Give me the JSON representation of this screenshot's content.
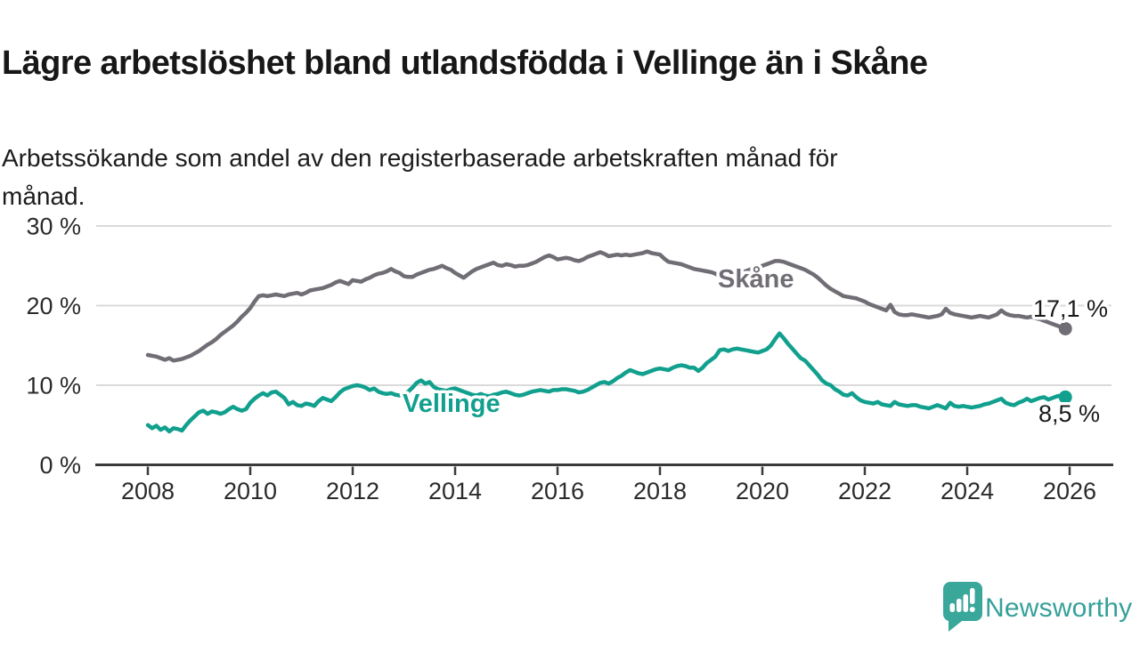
{
  "header": {
    "title": "Lägre arbetslöshet bland utlandsfödda i Vellinge än i Skåne",
    "subtitle_line1": "Arbetssökande som andel av den registerbaserade arbetskraften månad för",
    "subtitle_line2": "månad."
  },
  "chart_data": {
    "type": "line",
    "title": "Lägre arbetslöshet bland utlandsfödda i Vellinge än i Skåne",
    "subtitle": "Arbetssökande som andel av den registerbaserade arbetskraften månad för månad.",
    "x_start_year": 2008,
    "points_per_year": 12,
    "x_tick_years": [
      2008,
      2010,
      2012,
      2014,
      2016,
      2018,
      2020,
      2022,
      2024,
      2026
    ],
    "y_ticks": [
      {
        "value": 0,
        "label": "0 %"
      },
      {
        "value": 10,
        "label": "10 %"
      },
      {
        "value": 20,
        "label": "20 %"
      },
      {
        "value": 30,
        "label": "30 %"
      }
    ],
    "ylim": [
      0,
      30
    ],
    "grid": "horizontal",
    "legend_position": "inline-labels",
    "series": [
      {
        "name": "Skåne",
        "color": "#716d75",
        "end_label": "17,1 %",
        "values": [
          13.8,
          13.7,
          13.6,
          13.4,
          13.2,
          13.4,
          13.1,
          13.2,
          13.3,
          13.5,
          13.7,
          14.0,
          14.3,
          14.7,
          15.1,
          15.4,
          15.8,
          16.3,
          16.7,
          17.1,
          17.5,
          18.0,
          18.6,
          19.1,
          19.7,
          20.5,
          21.2,
          21.3,
          21.2,
          21.3,
          21.4,
          21.3,
          21.2,
          21.4,
          21.5,
          21.6,
          21.4,
          21.6,
          21.9,
          22.0,
          22.1,
          22.2,
          22.4,
          22.6,
          22.9,
          23.1,
          22.9,
          22.7,
          23.2,
          23.1,
          23.0,
          23.3,
          23.5,
          23.8,
          24.0,
          24.1,
          24.3,
          24.6,
          24.3,
          24.1,
          23.7,
          23.6,
          23.6,
          23.9,
          24.1,
          24.3,
          24.5,
          24.6,
          24.8,
          25.0,
          24.7,
          24.5,
          24.1,
          23.8,
          23.5,
          23.9,
          24.3,
          24.6,
          24.8,
          25.0,
          25.2,
          25.4,
          25.1,
          25.0,
          25.2,
          25.1,
          24.9,
          25.0,
          25.0,
          25.1,
          25.3,
          25.5,
          25.8,
          26.1,
          26.3,
          26.1,
          25.8,
          25.9,
          26.0,
          25.9,
          25.7,
          25.6,
          25.8,
          26.1,
          26.3,
          26.5,
          26.7,
          26.5,
          26.2,
          26.3,
          26.4,
          26.3,
          26.4,
          26.3,
          26.4,
          26.5,
          26.6,
          26.8,
          26.6,
          26.5,
          26.4,
          25.9,
          25.5,
          25.4,
          25.3,
          25.2,
          25.0,
          24.8,
          24.6,
          24.5,
          24.4,
          24.3,
          24.2,
          24.0,
          23.7,
          23.4,
          23.5,
          23.7,
          23.9,
          24.1,
          24.3,
          24.5,
          24.7,
          24.8,
          25.0,
          25.2,
          25.4,
          25.6,
          25.6,
          25.5,
          25.3,
          25.1,
          24.9,
          24.7,
          24.5,
          24.2,
          23.9,
          23.5,
          23.0,
          22.5,
          22.1,
          21.8,
          21.5,
          21.2,
          21.1,
          21.0,
          20.9,
          20.7,
          20.5,
          20.2,
          20.0,
          19.8,
          19.6,
          19.4,
          20.1,
          19.2,
          18.9,
          18.8,
          18.8,
          18.9,
          18.8,
          18.7,
          18.6,
          18.5,
          18.6,
          18.7,
          18.9,
          19.6,
          19.1,
          18.9,
          18.8,
          18.7,
          18.6,
          18.5,
          18.6,
          18.7,
          18.6,
          18.5,
          18.7,
          18.9,
          19.4,
          19.0,
          18.8,
          18.7,
          18.7,
          18.6,
          18.5,
          18.6,
          18.4,
          18.3,
          18.1,
          17.9,
          17.7,
          17.5,
          17.3,
          17.1
        ]
      },
      {
        "name": "Vellinge",
        "color": "#12a08e",
        "end_label": "8,5 %",
        "values": [
          5.0,
          4.6,
          4.9,
          4.4,
          4.7,
          4.2,
          4.6,
          4.5,
          4.3,
          5.0,
          5.6,
          6.1,
          6.6,
          6.8,
          6.4,
          6.7,
          6.6,
          6.4,
          6.6,
          7.0,
          7.3,
          7.0,
          6.8,
          7.0,
          7.8,
          8.3,
          8.7,
          9.0,
          8.7,
          9.1,
          9.2,
          8.8,
          8.4,
          7.6,
          7.9,
          7.5,
          7.4,
          7.7,
          7.6,
          7.4,
          8.0,
          8.4,
          8.2,
          8.0,
          8.5,
          9.1,
          9.5,
          9.7,
          9.9,
          10.0,
          9.9,
          9.7,
          9.4,
          9.6,
          9.2,
          9.0,
          8.9,
          9.0,
          8.8,
          8.7,
          8.8,
          9.2,
          9.7,
          10.3,
          10.6,
          10.2,
          10.4,
          9.8,
          9.5,
          9.4,
          9.3,
          9.5,
          9.6,
          9.4,
          9.2,
          9.0,
          8.8,
          8.7,
          8.9,
          8.7,
          8.6,
          8.8,
          8.9,
          9.1,
          9.2,
          9.0,
          8.8,
          8.7,
          8.8,
          9.0,
          9.2,
          9.3,
          9.4,
          9.3,
          9.2,
          9.4,
          9.4,
          9.5,
          9.5,
          9.4,
          9.3,
          9.1,
          9.2,
          9.4,
          9.7,
          10.0,
          10.3,
          10.4,
          10.2,
          10.5,
          10.9,
          11.2,
          11.6,
          11.9,
          11.7,
          11.5,
          11.4,
          11.6,
          11.8,
          12.0,
          12.1,
          12.0,
          11.9,
          12.2,
          12.4,
          12.5,
          12.4,
          12.2,
          12.2,
          11.8,
          12.2,
          12.8,
          13.2,
          13.6,
          14.4,
          14.5,
          14.3,
          14.5,
          14.6,
          14.5,
          14.4,
          14.3,
          14.2,
          14.1,
          14.3,
          14.5,
          15.0,
          15.8,
          16.5,
          15.9,
          15.2,
          14.6,
          14.0,
          13.4,
          13.1,
          12.5,
          11.9,
          11.3,
          10.6,
          10.2,
          10.0,
          9.5,
          9.2,
          8.8,
          8.7,
          9.0,
          8.5,
          8.1,
          7.9,
          7.8,
          7.7,
          7.9,
          7.6,
          7.5,
          7.4,
          7.9,
          7.6,
          7.5,
          7.4,
          7.5,
          7.5,
          7.3,
          7.2,
          7.1,
          7.3,
          7.5,
          7.3,
          7.1,
          7.8,
          7.4,
          7.3,
          7.4,
          7.3,
          7.2,
          7.3,
          7.4,
          7.6,
          7.7,
          7.9,
          8.1,
          8.3,
          7.8,
          7.6,
          7.5,
          7.8,
          8.0,
          8.3,
          8.0,
          8.2,
          8.4,
          8.5,
          8.2,
          8.4,
          8.6,
          8.7,
          8.5
        ]
      }
    ],
    "colors": {
      "axis": "#3b3b3b",
      "grid": "#dadada",
      "tick_text": "#2b2b2b",
      "end_label_text": "#1a1a1a"
    }
  },
  "footer": {
    "brand": "Newsworthy",
    "logo_color": "#3aa79b"
  }
}
